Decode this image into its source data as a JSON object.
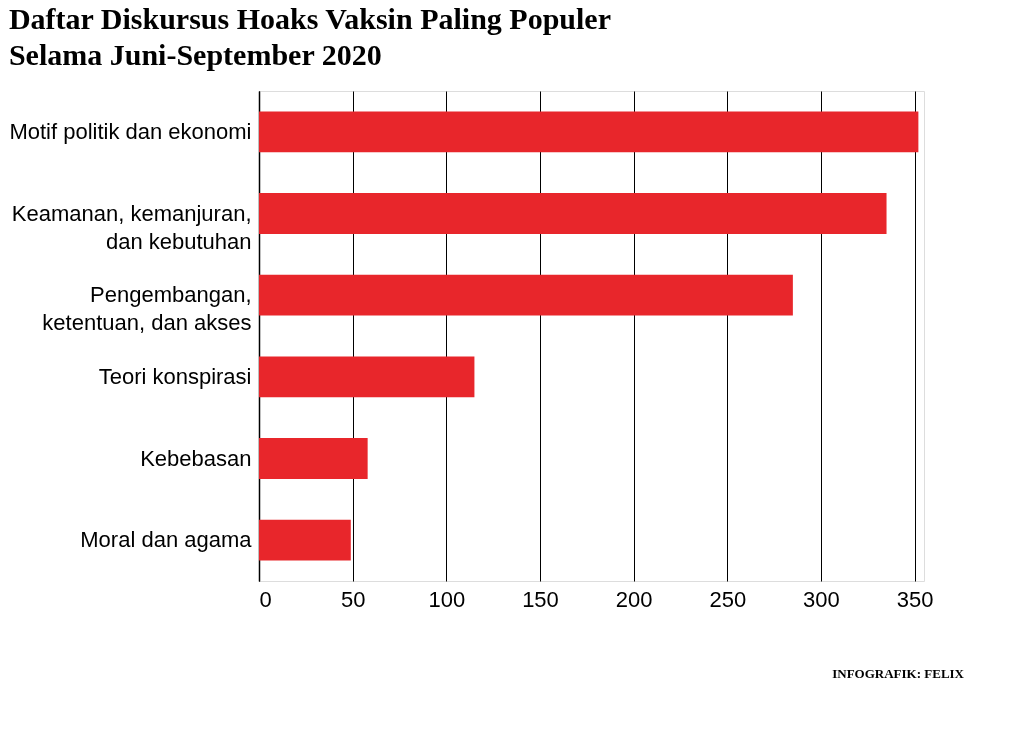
{
  "chart_data": {
    "type": "bar",
    "orientation": "horizontal",
    "title": "Daftar Diskursus Hoaks Vaksin Paling Populer\nSelama Juni-September 2020",
    "categories": [
      "Motif politik dan ekonomi",
      "Keamanan, kemanjuran,\ndan kebutuhan",
      "Pengembangan,\nketentuan, dan akses",
      "Teori konspirasi",
      "Kebebasan",
      "Moral dan agama"
    ],
    "values": [
      352,
      335,
      285,
      115,
      58,
      49
    ],
    "color": "#e8262b",
    "xlim": [
      0,
      355
    ],
    "xticks": [
      0,
      50,
      100,
      150,
      200,
      250,
      300,
      350
    ],
    "grid": "x",
    "annotations": [
      "INFOGRAFIK: FELIX"
    ]
  }
}
